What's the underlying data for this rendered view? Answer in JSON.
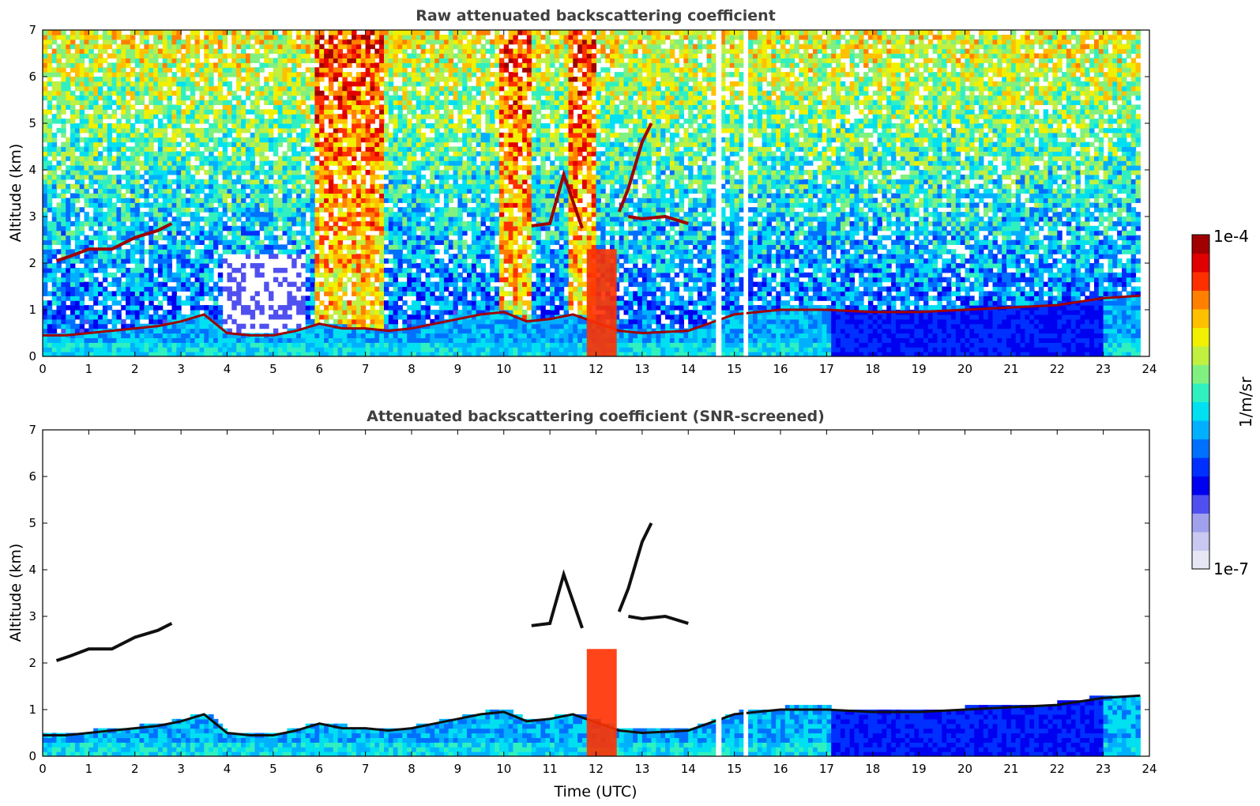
{
  "chart_data": [
    {
      "type": "heatmap",
      "title": "Raw attenuated backscattering coefficient",
      "xlabel": "",
      "ylabel": "Altitude (km)",
      "xlim": [
        0,
        24
      ],
      "ylim": [
        0,
        7
      ],
      "xticks": [
        "0",
        "1",
        "2",
        "3",
        "4",
        "5",
        "6",
        "7",
        "8",
        "9",
        "10",
        "11",
        "12",
        "13",
        "14",
        "15",
        "16",
        "17",
        "18",
        "19",
        "20",
        "21",
        "22",
        "23",
        "24"
      ],
      "yticks": [
        "0",
        "1",
        "2",
        "3",
        "4",
        "5",
        "6",
        "7"
      ],
      "data_end_time": 23.8,
      "gaps": [
        [
          14.6,
          14.72
        ],
        [
          15.2,
          15.26
        ]
      ],
      "layers": [
        {
          "name": "boundary layer top",
          "x": [
            0,
            0.5,
            1,
            1.5,
            2,
            2.5,
            3,
            3.5,
            4,
            4.5,
            5,
            5.5,
            6,
            6.5,
            7,
            7.5,
            8,
            8.5,
            9,
            9.5,
            10,
            10.5,
            11,
            11.5,
            12.5,
            13,
            14,
            15,
            16,
            17,
            18,
            19,
            20,
            21,
            22,
            23,
            23.8
          ],
          "y": [
            0.45,
            0.45,
            0.5,
            0.55,
            0.6,
            0.65,
            0.75,
            0.9,
            0.5,
            0.45,
            0.45,
            0.55,
            0.7,
            0.6,
            0.6,
            0.55,
            0.6,
            0.7,
            0.8,
            0.9,
            0.95,
            0.75,
            0.8,
            0.9,
            0.55,
            0.5,
            0.55,
            0.9,
            1.0,
            1.0,
            0.95,
            0.95,
            1.0,
            1.05,
            1.1,
            1.25,
            1.3
          ]
        },
        {
          "name": "elevated cloud layer",
          "x": [
            0.3,
            0.6,
            1.0,
            1.5,
            2.0,
            2.5,
            2.8
          ],
          "y": [
            2.05,
            2.15,
            2.3,
            2.3,
            2.55,
            2.7,
            2.85
          ]
        },
        {
          "name": "cloud 11h",
          "x": [
            10.6,
            11.0,
            11.3,
            11.7
          ],
          "y": [
            2.8,
            2.85,
            3.9,
            2.75
          ]
        },
        {
          "name": "cloud 13h",
          "x": [
            12.7,
            13.0,
            13.5,
            14.0
          ],
          "y": [
            3.0,
            2.95,
            3.0,
            2.85
          ]
        },
        {
          "name": "cloud 12.7h rising",
          "x": [
            12.5,
            12.7,
            13.0,
            13.2
          ],
          "y": [
            3.1,
            3.6,
            4.6,
            5.0
          ]
        }
      ],
      "precipitation": [
        11.8,
        12.45
      ]
    },
    {
      "type": "heatmap",
      "title": "Attenuated backscattering coefficient (SNR-screened)",
      "xlabel": "Time (UTC)",
      "ylabel": "Altitude (km)",
      "xlim": [
        0,
        24
      ],
      "ylim": [
        0,
        7
      ],
      "xticks": [
        "0",
        "1",
        "2",
        "3",
        "4",
        "5",
        "6",
        "7",
        "8",
        "9",
        "10",
        "11",
        "12",
        "13",
        "14",
        "15",
        "16",
        "17",
        "18",
        "19",
        "20",
        "21",
        "22",
        "23",
        "24"
      ],
      "yticks": [
        "0",
        "1",
        "2",
        "3",
        "4",
        "5",
        "6",
        "7"
      ]
    }
  ],
  "colorbar": {
    "label": "1/m/sr",
    "max_label": "1e-4",
    "min_label": "1e-7",
    "colors": [
      "#e6e6f5",
      "#c8c8f0",
      "#a0a0ec",
      "#5050f0",
      "#0000f0",
      "#0030ff",
      "#0070ff",
      "#00b0ff",
      "#00e0f0",
      "#30f0c0",
      "#80f080",
      "#c0f040",
      "#f0f000",
      "#ffc000",
      "#ff8000",
      "#ff3000",
      "#e00000",
      "#a00000"
    ]
  }
}
